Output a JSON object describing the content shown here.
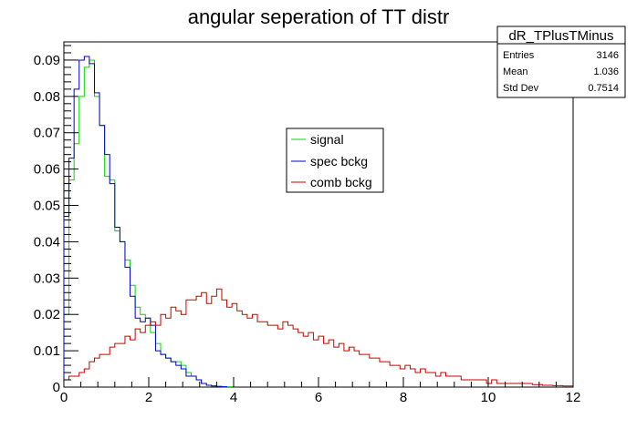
{
  "chart_data": {
    "type": "line",
    "title": "angular seperation of TT distr",
    "xlabel": "",
    "ylabel": "",
    "xlim": [
      0,
      12
    ],
    "ylim": [
      0,
      0.095
    ],
    "bin_width": 0.12,
    "x_ticks": [
      "0",
      "2",
      "4",
      "6",
      "8",
      "10",
      "12"
    ],
    "y_ticks": [
      "0",
      "0.01",
      "0.02",
      "0.03",
      "0.04",
      "0.05",
      "0.06",
      "0.07",
      "0.08",
      "0.09"
    ],
    "grid": false,
    "legend_position": "center",
    "series": [
      {
        "name": "signal",
        "color": "#00dd00",
        "values": [
          0.02,
          0.057,
          0.067,
          0.08,
          0.088,
          0.09,
          0.08,
          0.072,
          0.058,
          0.057,
          0.043,
          0.04,
          0.035,
          0.028,
          0.022,
          0.02,
          0.019,
          0.015,
          0.012,
          0.009,
          0.008,
          0.007,
          0.007,
          0.006,
          0.004,
          0.003,
          0.002,
          0.001,
          0.0005,
          0.0003,
          0.0002,
          0.0001,
          0.0001
        ]
      },
      {
        "name": "spec bckg",
        "color": "#0000cc",
        "values": [
          0.047,
          0.063,
          0.082,
          0.09,
          0.091,
          0.089,
          0.081,
          0.072,
          0.064,
          0.056,
          0.044,
          0.04,
          0.033,
          0.025,
          0.019,
          0.018,
          0.019,
          0.017,
          0.01,
          0.009,
          0.008,
          0.007,
          0.006,
          0.005,
          0.003,
          0.003,
          0.002,
          0.001,
          0.0005,
          0.0003,
          0.0002,
          0.0001
        ]
      },
      {
        "name": "comb bckg",
        "color": "#cc0000",
        "values": [
          0.002,
          0.003,
          0.003,
          0.004,
          0.005,
          0.007,
          0.008,
          0.009,
          0.009,
          0.011,
          0.012,
          0.012,
          0.014,
          0.013,
          0.016,
          0.015,
          0.017,
          0.018,
          0.017,
          0.02,
          0.019,
          0.022,
          0.021,
          0.02,
          0.024,
          0.024,
          0.025,
          0.026,
          0.023,
          0.025,
          0.027,
          0.024,
          0.022,
          0.023,
          0.021,
          0.02,
          0.019,
          0.02,
          0.018,
          0.018,
          0.017,
          0.017,
          0.016,
          0.018,
          0.017,
          0.016,
          0.015,
          0.014,
          0.015,
          0.013,
          0.014,
          0.012,
          0.013,
          0.011,
          0.012,
          0.01,
          0.011,
          0.01,
          0.009,
          0.009,
          0.008,
          0.008,
          0.007,
          0.007,
          0.006,
          0.006,
          0.005,
          0.006,
          0.005,
          0.004,
          0.005,
          0.004,
          0.004,
          0.003,
          0.004,
          0.003,
          0.003,
          0.003,
          0.002,
          0.002,
          0.002,
          0.002,
          0.002,
          0.001,
          0.002,
          0.001,
          0.001,
          0.001,
          0.001,
          0.001,
          0.001,
          0.001,
          0.0007,
          0.0007,
          0.0005,
          0.0005,
          0.0004,
          0.0004,
          0.0003,
          0.0003
        ]
      }
    ]
  },
  "stats_box": {
    "title": "dR_TPlusTMinus",
    "rows": [
      {
        "label": "Entries",
        "value": "3146"
      },
      {
        "label": "Mean",
        "value": "1.036"
      },
      {
        "label": "Std Dev",
        "value": "0.7514"
      }
    ]
  }
}
